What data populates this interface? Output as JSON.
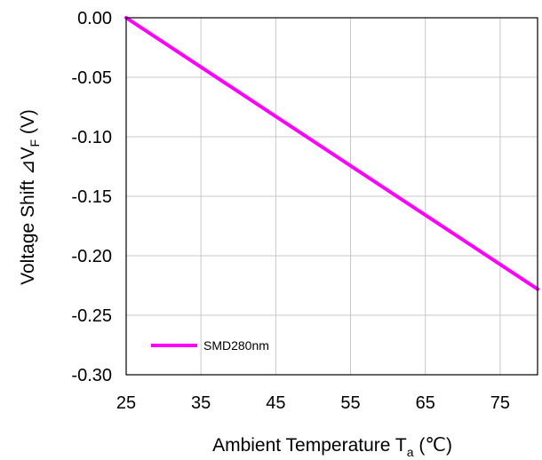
{
  "chart_data": {
    "type": "line",
    "title": "",
    "xlabel": {
      "prefix": "Ambient Temperature T",
      "subscript": "a",
      "suffix": " (℃)"
    },
    "ylabel": {
      "prefix": "Voltage Shift  ⊿V",
      "subscript": "F",
      "suffix": " (V)"
    },
    "xlim": [
      25,
      80
    ],
    "ylim": [
      -0.3,
      0.0
    ],
    "x_ticks": [
      25,
      35,
      45,
      55,
      65,
      75
    ],
    "x_tick_labels": [
      "25",
      "35",
      "45",
      "55",
      "65",
      "75"
    ],
    "y_ticks": [
      0.0,
      -0.05,
      -0.1,
      -0.15,
      -0.2,
      -0.25,
      -0.3
    ],
    "y_tick_labels": [
      "0.00",
      "-0.05",
      "-0.10",
      "-0.15",
      "-0.20",
      "-0.25",
      "-0.30"
    ],
    "grid": true,
    "legend_position": "bottom-left",
    "series": [
      {
        "name": "SMD280nm",
        "color": "#ff00ff",
        "x": [
          25,
          80
        ],
        "y": [
          0.0,
          -0.228
        ]
      }
    ]
  }
}
